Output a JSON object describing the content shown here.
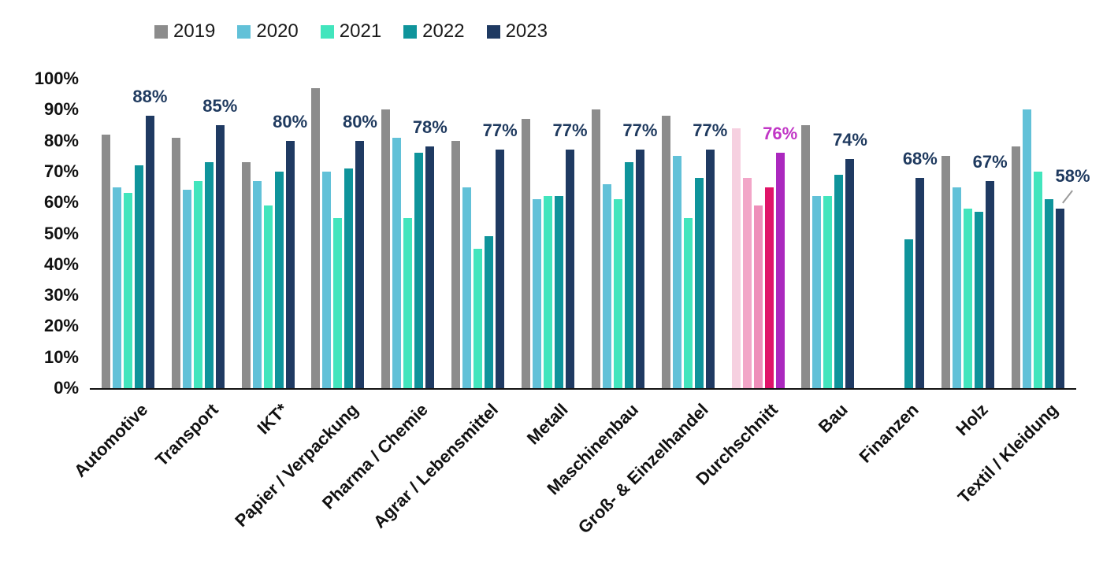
{
  "chart_data": {
    "type": "bar",
    "title": "",
    "xlabel": "",
    "ylabel": "",
    "ylim": [
      0,
      100
    ],
    "grid": false,
    "legend_position": "top-left",
    "yticks": [
      "100%",
      "90%",
      "80%",
      "70%",
      "60%",
      "50%",
      "40%",
      "30%",
      "20%",
      "10%",
      "0%"
    ],
    "categories": [
      "Automotive",
      "Transport",
      "IKT*",
      "Papier / Verpackung",
      "Pharma / Chemie",
      "Agrar / Lebensmittel",
      "Metall",
      "Maschinenbau",
      "Groß- & Einzelhandel",
      "Durchschnitt",
      "Bau",
      "Finanzen",
      "Holz",
      "Textil / Kleidung"
    ],
    "series": [
      {
        "name": "2019",
        "color": "#8C8C8C",
        "values": [
          82,
          81,
          73,
          97,
          90,
          80,
          87,
          90,
          88,
          84,
          85,
          null,
          75,
          78
        ]
      },
      {
        "name": "2020",
        "color": "#62C1D8",
        "values": [
          65,
          64,
          67,
          70,
          81,
          65,
          61,
          66,
          75,
          68,
          62,
          null,
          65,
          90
        ]
      },
      {
        "name": "2021",
        "color": "#42E5BD",
        "values": [
          63,
          67,
          59,
          55,
          55,
          45,
          62,
          61,
          55,
          59,
          62,
          null,
          58,
          70
        ]
      },
      {
        "name": "2022",
        "color": "#0F949B",
        "values": [
          72,
          73,
          70,
          71,
          76,
          49,
          62,
          73,
          68,
          65,
          69,
          48,
          57,
          61
        ]
      },
      {
        "name": "2023",
        "color": "#1F3A62",
        "values": [
          88,
          85,
          80,
          80,
          78,
          77,
          77,
          77,
          77,
          76,
          74,
          68,
          67,
          58
        ]
      }
    ],
    "value_labels": [
      "88%",
      "85%",
      "80%",
      "80%",
      "78%",
      "77%",
      "77%",
      "77%",
      "77%",
      "76%",
      "74%",
      "68%",
      "67%",
      "58%"
    ],
    "value_label_color": "#1F3A5F",
    "highlight_category": "Durchschnitt",
    "highlight_colors": [
      "#F6D0E0",
      "#F2A6C8",
      "#EE8FBA",
      "#E01469",
      "#AB28BE"
    ],
    "highlight_label_color": "#C136C6",
    "leader_line_category": "Textil / Kleidung",
    "axis_color": "#111111"
  }
}
